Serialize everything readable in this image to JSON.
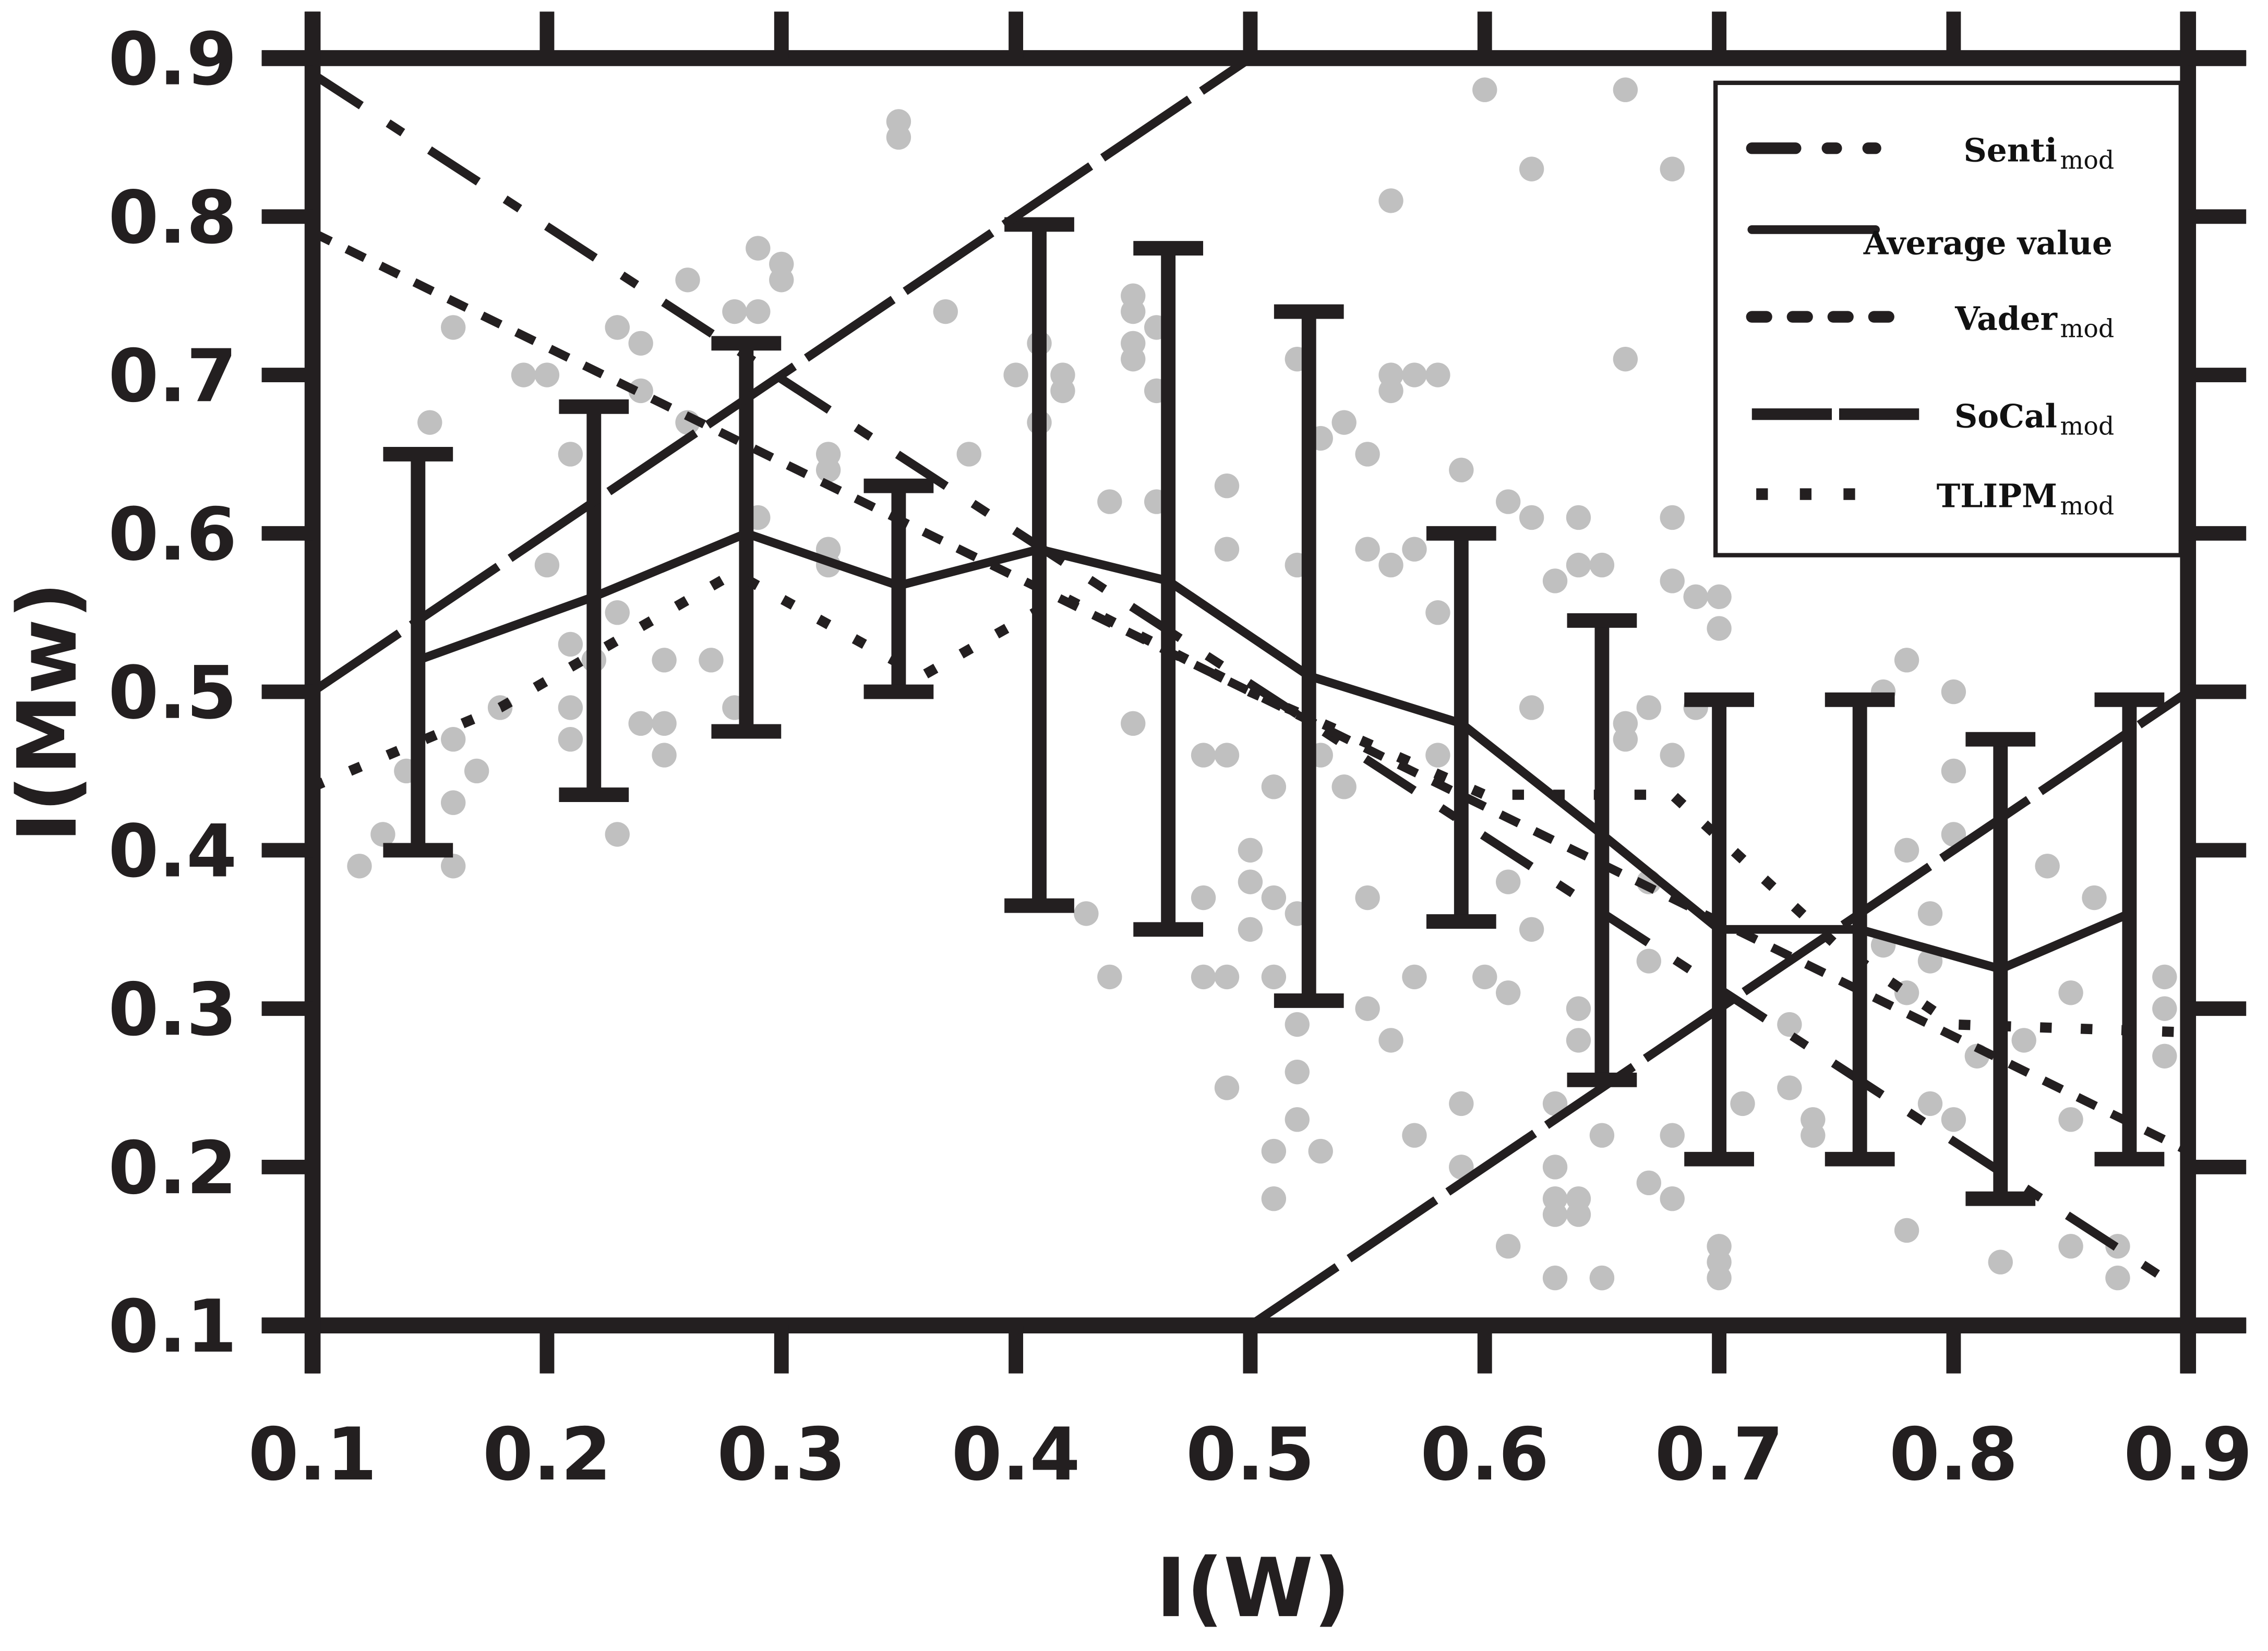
{
  "chart_data": {
    "type": "line",
    "xlabel": "I(W)",
    "ylabel": "I(Mw)",
    "xlim": [
      0.1,
      0.9
    ],
    "ylim": [
      0.1,
      0.9
    ],
    "xticks": [
      "0.1",
      "0.2",
      "0.3",
      "0.4",
      "0.5",
      "0.6",
      "0.7",
      "0.8",
      "0.9"
    ],
    "yticks": [
      "0.1",
      "0.2",
      "0.3",
      "0.4",
      "0.5",
      "0.6",
      "0.7",
      "0.8",
      "0.9"
    ],
    "grid": false,
    "legend_position": "top-right",
    "colors": {
      "axis": "#231f20",
      "scatter": "#c0c0c0",
      "lines": "#231f20"
    },
    "series": [
      {
        "name": "Senti",
        "sub": "mod",
        "style": "dash-dot",
        "points": [
          [
            0.1,
            0.89
          ],
          [
            0.9,
            0.12
          ]
        ]
      },
      {
        "name": "Average value",
        "sub": "",
        "style": "solid",
        "points": [
          [
            0.145,
            0.52
          ],
          [
            0.22,
            0.56
          ],
          [
            0.285,
            0.6
          ],
          [
            0.35,
            0.567
          ],
          [
            0.41,
            0.59
          ],
          [
            0.465,
            0.57
          ],
          [
            0.525,
            0.51
          ],
          [
            0.59,
            0.48
          ],
          [
            0.65,
            0.41
          ],
          [
            0.7,
            0.35
          ],
          [
            0.76,
            0.35
          ],
          [
            0.82,
            0.325
          ],
          [
            0.875,
            0.36
          ]
        ],
        "error_bars": [
          [
            0.4,
            0.65
          ],
          [
            0.435,
            0.68
          ],
          [
            0.475,
            0.72
          ],
          [
            0.5,
            0.63
          ],
          [
            0.365,
            0.795
          ],
          [
            0.35,
            0.78
          ],
          [
            0.305,
            0.74
          ],
          [
            0.355,
            0.6
          ],
          [
            0.255,
            0.545
          ],
          [
            0.205,
            0.495
          ],
          [
            0.205,
            0.495
          ],
          [
            0.18,
            0.47
          ],
          [
            0.205,
            0.495
          ]
        ]
      },
      {
        "name": "Vader",
        "sub": "mod",
        "style": "short-dash",
        "points": [
          [
            0.1,
            0.79
          ],
          [
            0.9,
            0.21
          ]
        ]
      },
      {
        "name": "SoCal",
        "sub": "mod",
        "style": "long-dash",
        "segments": [
          [
            [
              0.1,
              0.5
            ],
            [
              0.5,
              0.9
            ]
          ],
          [
            [
              0.5,
              0.1
            ],
            [
              0.9,
              0.5
            ]
          ]
        ]
      },
      {
        "name": "TLIPM",
        "sub": "mod",
        "style": "dotted",
        "points": [
          [
            0.1,
            0.44
          ],
          [
            0.18,
            0.49
          ],
          [
            0.28,
            0.575
          ],
          [
            0.36,
            0.51
          ],
          [
            0.42,
            0.56
          ],
          [
            0.5,
            0.5
          ],
          [
            0.6,
            0.435
          ],
          [
            0.68,
            0.435
          ],
          [
            0.75,
            0.34
          ],
          [
            0.8,
            0.29
          ],
          [
            0.9,
            0.285
          ]
        ]
      }
    ],
    "scatter": [
      [
        0.12,
        0.39
      ],
      [
        0.13,
        0.41
      ],
      [
        0.14,
        0.45
      ],
      [
        0.15,
        0.67
      ],
      [
        0.16,
        0.73
      ],
      [
        0.16,
        0.39
      ],
      [
        0.16,
        0.47
      ],
      [
        0.16,
        0.43
      ],
      [
        0.17,
        0.45
      ],
      [
        0.18,
        0.49
      ],
      [
        0.19,
        0.7
      ],
      [
        0.2,
        0.7
      ],
      [
        0.2,
        0.58
      ],
      [
        0.21,
        0.65
      ],
      [
        0.21,
        0.53
      ],
      [
        0.21,
        0.49
      ],
      [
        0.21,
        0.47
      ],
      [
        0.22,
        0.52
      ],
      [
        0.23,
        0.73
      ],
      [
        0.23,
        0.73
      ],
      [
        0.23,
        0.41
      ],
      [
        0.23,
        0.55
      ],
      [
        0.24,
        0.69
      ],
      [
        0.24,
        0.72
      ],
      [
        0.24,
        0.48
      ],
      [
        0.25,
        0.46
      ],
      [
        0.25,
        0.48
      ],
      [
        0.25,
        0.52
      ],
      [
        0.26,
        0.67
      ],
      [
        0.26,
        0.76
      ],
      [
        0.27,
        0.52
      ],
      [
        0.28,
        0.49
      ],
      [
        0.28,
        0.74
      ],
      [
        0.29,
        0.78
      ],
      [
        0.29,
        0.61
      ],
      [
        0.29,
        0.74
      ],
      [
        0.3,
        0.77
      ],
      [
        0.3,
        0.76
      ],
      [
        0.32,
        0.65
      ],
      [
        0.32,
        0.59
      ],
      [
        0.32,
        0.64
      ],
      [
        0.32,
        0.58
      ],
      [
        0.35,
        0.86
      ],
      [
        0.35,
        0.85
      ],
      [
        0.37,
        0.74
      ],
      [
        0.38,
        0.65
      ],
      [
        0.4,
        0.7
      ],
      [
        0.41,
        0.67
      ],
      [
        0.41,
        0.72
      ],
      [
        0.42,
        0.7
      ],
      [
        0.42,
        0.69
      ],
      [
        0.43,
        0.36
      ],
      [
        0.44,
        0.32
      ],
      [
        0.44,
        0.62
      ],
      [
        0.45,
        0.72
      ],
      [
        0.45,
        0.48
      ],
      [
        0.45,
        0.75
      ],
      [
        0.45,
        0.74
      ],
      [
        0.45,
        0.71
      ],
      [
        0.46,
        0.69
      ],
      [
        0.46,
        0.73
      ],
      [
        0.46,
        0.62
      ],
      [
        0.48,
        0.46
      ],
      [
        0.48,
        0.37
      ],
      [
        0.48,
        0.32
      ],
      [
        0.49,
        0.63
      ],
      [
        0.49,
        0.59
      ],
      [
        0.49,
        0.32
      ],
      [
        0.49,
        0.46
      ],
      [
        0.49,
        0.25
      ],
      [
        0.5,
        0.4
      ],
      [
        0.5,
        0.35
      ],
      [
        0.5,
        0.38
      ],
      [
        0.51,
        0.21
      ],
      [
        0.51,
        0.18
      ],
      [
        0.51,
        0.44
      ],
      [
        0.51,
        0.37
      ],
      [
        0.51,
        0.32
      ],
      [
        0.52,
        0.23
      ],
      [
        0.52,
        0.36
      ],
      [
        0.52,
        0.58
      ],
      [
        0.52,
        0.29
      ],
      [
        0.52,
        0.26
      ],
      [
        0.52,
        0.71
      ],
      [
        0.53,
        0.66
      ],
      [
        0.53,
        0.46
      ],
      [
        0.53,
        0.21
      ],
      [
        0.54,
        0.67
      ],
      [
        0.54,
        0.44
      ],
      [
        0.55,
        0.37
      ],
      [
        0.55,
        0.3
      ],
      [
        0.55,
        0.59
      ],
      [
        0.55,
        0.65
      ],
      [
        0.56,
        0.58
      ],
      [
        0.56,
        0.7
      ],
      [
        0.56,
        0.81
      ],
      [
        0.56,
        0.69
      ],
      [
        0.56,
        0.28
      ],
      [
        0.57,
        0.7
      ],
      [
        0.57,
        0.32
      ],
      [
        0.57,
        0.22
      ],
      [
        0.57,
        0.59
      ],
      [
        0.58,
        0.7
      ],
      [
        0.58,
        0.46
      ],
      [
        0.58,
        0.55
      ],
      [
        0.59,
        0.2
      ],
      [
        0.59,
        0.64
      ],
      [
        0.59,
        0.24
      ],
      [
        0.59,
        0.2
      ],
      [
        0.6,
        0.88
      ],
      [
        0.6,
        0.32
      ],
      [
        0.61,
        0.62
      ],
      [
        0.61,
        0.15
      ],
      [
        0.61,
        0.38
      ],
      [
        0.61,
        0.31
      ],
      [
        0.62,
        0.61
      ],
      [
        0.62,
        0.35
      ],
      [
        0.62,
        0.49
      ],
      [
        0.62,
        0.83
      ],
      [
        0.63,
        0.57
      ],
      [
        0.63,
        0.17
      ],
      [
        0.63,
        0.24
      ],
      [
        0.63,
        0.13
      ],
      [
        0.63,
        0.18
      ],
      [
        0.63,
        0.2
      ],
      [
        0.64,
        0.28
      ],
      [
        0.64,
        0.61
      ],
      [
        0.64,
        0.58
      ],
      [
        0.64,
        0.3
      ],
      [
        0.64,
        0.17
      ],
      [
        0.64,
        0.18
      ],
      [
        0.65,
        0.22
      ],
      [
        0.65,
        0.13
      ],
      [
        0.65,
        0.13
      ],
      [
        0.65,
        0.58
      ],
      [
        0.66,
        0.71
      ],
      [
        0.66,
        0.88
      ],
      [
        0.66,
        0.48
      ],
      [
        0.66,
        0.47
      ],
      [
        0.67,
        0.38
      ],
      [
        0.67,
        0.33
      ],
      [
        0.67,
        0.49
      ],
      [
        0.67,
        0.19
      ],
      [
        0.68,
        0.18
      ],
      [
        0.68,
        0.22
      ],
      [
        0.68,
        0.61
      ],
      [
        0.68,
        0.83
      ],
      [
        0.68,
        0.57
      ],
      [
        0.68,
        0.46
      ],
      [
        0.69,
        0.49
      ],
      [
        0.69,
        0.56
      ],
      [
        0.7,
        0.54
      ],
      [
        0.7,
        0.15
      ],
      [
        0.7,
        0.13
      ],
      [
        0.7,
        0.56
      ],
      [
        0.7,
        0.14
      ],
      [
        0.71,
        0.24
      ],
      [
        0.73,
        0.25
      ],
      [
        0.73,
        0.29
      ],
      [
        0.74,
        0.23
      ],
      [
        0.74,
        0.22
      ],
      [
        0.77,
        0.5
      ],
      [
        0.77,
        0.34
      ],
      [
        0.78,
        0.4
      ],
      [
        0.78,
        0.52
      ],
      [
        0.78,
        0.31
      ],
      [
        0.78,
        0.16
      ],
      [
        0.79,
        0.36
      ],
      [
        0.79,
        0.33
      ],
      [
        0.79,
        0.24
      ],
      [
        0.8,
        0.5
      ],
      [
        0.8,
        0.45
      ],
      [
        0.8,
        0.23
      ],
      [
        0.8,
        0.41
      ],
      [
        0.81,
        0.27
      ],
      [
        0.82,
        0.14
      ],
      [
        0.83,
        0.28
      ],
      [
        0.84,
        0.39
      ],
      [
        0.85,
        0.15
      ],
      [
        0.85,
        0.31
      ],
      [
        0.85,
        0.23
      ],
      [
        0.86,
        0.37
      ],
      [
        0.87,
        0.13
      ],
      [
        0.87,
        0.15
      ],
      [
        0.89,
        0.27
      ],
      [
        0.89,
        0.3
      ],
      [
        0.89,
        0.32
      ]
    ]
  }
}
